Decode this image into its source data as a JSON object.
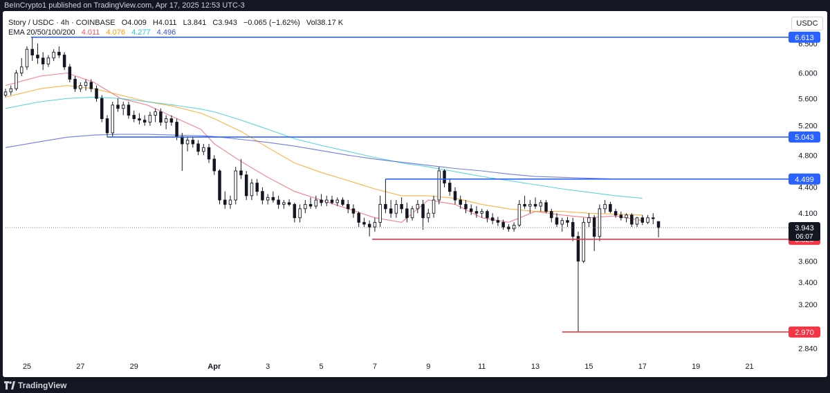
{
  "header": {
    "published": "BeInCrypto1 published on TradingView.com, Apr 17, 2025 12:53 UTC-3",
    "symbol": "Story / USDC · 4h · COINBASE",
    "open_label": "O",
    "open": "4.009",
    "high_label": "H",
    "high": "4.011",
    "low_label": "L",
    "low": "3.841",
    "close_label": "C",
    "close": "3.943",
    "change": "−0.065 (−1.62%)",
    "volume_label": "Vol",
    "volume": "38.17 K",
    "ema_label": "EMA 20/50/100/200",
    "ema20": "4.011",
    "ema50": "4.076",
    "ema100": "4.277",
    "ema200": "4.496"
  },
  "currency_button": "USDC",
  "footer": {
    "brand": "TradingView"
  },
  "colors": {
    "candle": "#131722",
    "ema20": "#f7525f",
    "ema50": "#ff9800",
    "ema100": "#26c6da",
    "ema200": "#3f51d8",
    "resistance": "#2962ff",
    "support": "#f23645",
    "price_tag": "#131722",
    "axis_text": "#131722",
    "background": "#ffffff"
  },
  "chart_data": {
    "type": "candlestick",
    "title": "Story / USDC · 4h · COINBASE",
    "y_axis": {
      "ticks": [
        "6.500",
        "6.000",
        "5.600",
        "5.200",
        "4.800",
        "4.400",
        "4.100",
        "3.600",
        "3.400",
        "3.200",
        "2.840"
      ],
      "range": [
        2.78,
        6.66
      ],
      "scale": "log"
    },
    "x_axis": {
      "ticks": [
        "25",
        "27",
        "29",
        "Apr",
        "3",
        "5",
        "7",
        "9",
        "11",
        "13",
        "15",
        "17",
        "19",
        "21"
      ],
      "tick_days": [
        0,
        2,
        4,
        7,
        9,
        11,
        13,
        15,
        17,
        19,
        21,
        23,
        25,
        27
      ],
      "range_days": [
        -0.8,
        28.2
      ]
    },
    "levels": [
      {
        "price": 6.613,
        "label": "6.613",
        "kind": "resistance",
        "from_day": 0.15
      },
      {
        "price": 5.043,
        "label": "5.043",
        "kind": "resistance",
        "from_day": 3.0
      },
      {
        "price": 4.499,
        "label": "4.499",
        "kind": "resistance",
        "from_day": 13.4
      },
      {
        "price": 3.82,
        "label": "3.820",
        "kind": "support",
        "from_day": 12.9
      },
      {
        "price": 2.97,
        "label": "2.970",
        "kind": "support",
        "from_day": 20.0
      }
    ],
    "last_price": {
      "value": 3.943,
      "label": "3.943",
      "countdown": "06:07"
    },
    "ema_series": [
      {
        "name": "EMA 20",
        "value": "4.011",
        "points": [
          [
            -0.8,
            5.8
          ],
          [
            0.5,
            5.95
          ],
          [
            1.5,
            6.0
          ],
          [
            2.5,
            5.85
          ],
          [
            3.5,
            5.6
          ],
          [
            4.5,
            5.5
          ],
          [
            5.5,
            5.32
          ],
          [
            6.5,
            5.15
          ],
          [
            7,
            4.95
          ],
          [
            8,
            4.72
          ],
          [
            9,
            4.52
          ],
          [
            10,
            4.35
          ],
          [
            11,
            4.25
          ],
          [
            12,
            4.15
          ],
          [
            13,
            4.05
          ],
          [
            14,
            4.0
          ],
          [
            15,
            4.25
          ],
          [
            16,
            4.2
          ],
          [
            17,
            4.05
          ],
          [
            18,
            4.0
          ],
          [
            19,
            4.12
          ],
          [
            20,
            4.08
          ],
          [
            21,
            4.05
          ],
          [
            22,
            4.07
          ],
          [
            23,
            4.02
          ]
        ]
      },
      {
        "name": "EMA 50",
        "value": "4.076",
        "points": [
          [
            -0.8,
            5.62
          ],
          [
            0.5,
            5.75
          ],
          [
            1.5,
            5.8
          ],
          [
            2.5,
            5.75
          ],
          [
            3.5,
            5.65
          ],
          [
            4.5,
            5.55
          ],
          [
            5.5,
            5.48
          ],
          [
            6.5,
            5.38
          ],
          [
            7,
            5.3
          ],
          [
            8,
            5.12
          ],
          [
            9,
            4.9
          ],
          [
            10,
            4.7
          ],
          [
            11,
            4.58
          ],
          [
            12,
            4.48
          ],
          [
            13,
            4.38
          ],
          [
            14,
            4.3
          ],
          [
            15,
            4.3
          ],
          [
            16,
            4.27
          ],
          [
            17,
            4.2
          ],
          [
            18,
            4.15
          ],
          [
            19,
            4.12
          ],
          [
            20,
            4.12
          ],
          [
            21,
            4.1
          ],
          [
            22,
            4.09
          ],
          [
            23,
            4.08
          ]
        ]
      },
      {
        "name": "EMA 100",
        "value": "4.277",
        "points": [
          [
            -0.8,
            5.45
          ],
          [
            0.5,
            5.55
          ],
          [
            1.5,
            5.6
          ],
          [
            2.5,
            5.62
          ],
          [
            3.5,
            5.6
          ],
          [
            4.5,
            5.55
          ],
          [
            5.5,
            5.5
          ],
          [
            6.5,
            5.44
          ],
          [
            7,
            5.4
          ],
          [
            8,
            5.28
          ],
          [
            9,
            5.15
          ],
          [
            10,
            5.02
          ],
          [
            11,
            4.93
          ],
          [
            12,
            4.85
          ],
          [
            13,
            4.77
          ],
          [
            14,
            4.7
          ],
          [
            15,
            4.65
          ],
          [
            16,
            4.59
          ],
          [
            17,
            4.53
          ],
          [
            18,
            4.48
          ],
          [
            19,
            4.43
          ],
          [
            20,
            4.38
          ],
          [
            21,
            4.34
          ],
          [
            22,
            4.3
          ],
          [
            23,
            4.27
          ]
        ]
      },
      {
        "name": "EMA 200",
        "value": "4.496",
        "points": [
          [
            -0.8,
            4.9
          ],
          [
            0.5,
            4.98
          ],
          [
            1.5,
            5.04
          ],
          [
            2.5,
            5.07
          ],
          [
            3.5,
            5.08
          ],
          [
            4.5,
            5.08
          ],
          [
            5.5,
            5.07
          ],
          [
            6.5,
            5.06
          ],
          [
            7,
            5.05
          ],
          [
            8,
            5.01
          ],
          [
            9,
            4.97
          ],
          [
            10,
            4.92
          ],
          [
            11,
            4.86
          ],
          [
            12,
            4.8
          ],
          [
            13,
            4.75
          ],
          [
            14,
            4.71
          ],
          [
            15,
            4.67
          ],
          [
            16,
            4.63
          ],
          [
            17,
            4.6
          ],
          [
            18,
            4.56
          ],
          [
            19,
            4.53
          ],
          [
            20,
            4.52
          ],
          [
            21,
            4.51
          ],
          [
            22,
            4.5
          ],
          [
            23,
            4.5
          ]
        ]
      }
    ],
    "candles": [
      [
        -0.8,
        5.65,
        5.75,
        5.62,
        5.7
      ],
      [
        -0.6,
        5.7,
        5.8,
        5.65,
        5.75
      ],
      [
        -0.4,
        5.75,
        6.05,
        5.72,
        6.0
      ],
      [
        -0.2,
        6.0,
        6.25,
        5.95,
        6.1
      ],
      [
        0,
        6.1,
        6.45,
        6.05,
        6.4
      ],
      [
        0.2,
        6.4,
        6.613,
        6.2,
        6.3
      ],
      [
        0.4,
        6.3,
        6.5,
        6.15,
        6.25
      ],
      [
        0.6,
        6.25,
        6.35,
        6.05,
        6.15
      ],
      [
        0.8,
        6.15,
        6.3,
        6.1,
        6.25
      ],
      [
        1,
        6.25,
        6.4,
        6.2,
        6.35
      ],
      [
        1.2,
        6.35,
        6.45,
        6.25,
        6.3
      ],
      [
        1.4,
        6.3,
        6.35,
        6.05,
        6.1
      ],
      [
        1.6,
        6.1,
        6.15,
        5.85,
        5.9
      ],
      [
        1.8,
        5.9,
        5.95,
        5.7,
        5.75
      ],
      [
        2,
        5.75,
        5.85,
        5.7,
        5.8
      ],
      [
        2.2,
        5.8,
        5.9,
        5.72,
        5.85
      ],
      [
        2.4,
        5.85,
        5.9,
        5.7,
        5.75
      ],
      [
        2.6,
        5.75,
        5.8,
        5.55,
        5.6
      ],
      [
        2.8,
        5.6,
        5.65,
        5.25,
        5.3
      ],
      [
        3.0,
        5.3,
        5.35,
        5.04,
        5.1
      ],
      [
        3.2,
        5.1,
        5.55,
        5.05,
        5.5
      ],
      [
        3.4,
        5.5,
        5.6,
        5.4,
        5.45
      ],
      [
        3.6,
        5.45,
        5.55,
        5.35,
        5.5
      ],
      [
        3.8,
        5.5,
        5.55,
        5.3,
        5.35
      ],
      [
        4.0,
        5.35,
        5.42,
        5.25,
        5.3
      ],
      [
        4.2,
        5.3,
        5.38,
        5.22,
        5.28
      ],
      [
        4.4,
        5.28,
        5.35,
        5.2,
        5.25
      ],
      [
        4.6,
        5.25,
        5.4,
        5.2,
        5.35
      ],
      [
        4.8,
        5.35,
        5.45,
        5.25,
        5.4
      ],
      [
        5.0,
        5.4,
        5.45,
        5.2,
        5.25
      ],
      [
        5.2,
        5.25,
        5.35,
        5.15,
        5.3
      ],
      [
        5.4,
        5.3,
        5.35,
        5.2,
        5.25
      ],
      [
        5.6,
        5.25,
        5.3,
        5.0,
        5.05
      ],
      [
        5.8,
        5.05,
        5.1,
        4.6,
        4.95
      ],
      [
        6.0,
        4.95,
        5.05,
        4.85,
        5.0
      ],
      [
        6.2,
        5.0,
        5.05,
        4.9,
        4.95
      ],
      [
        6.4,
        4.95,
        5.0,
        4.8,
        4.85
      ],
      [
        6.6,
        4.85,
        4.95,
        4.8,
        4.9
      ],
      [
        6.8,
        4.9,
        4.95,
        4.7,
        4.75
      ],
      [
        7.0,
        4.75,
        4.8,
        4.55,
        4.6
      ],
      [
        7.2,
        4.6,
        4.62,
        4.2,
        4.25
      ],
      [
        7.4,
        4.25,
        4.35,
        4.15,
        4.2
      ],
      [
        7.6,
        4.2,
        4.3,
        4.15,
        4.25
      ],
      [
        7.8,
        4.25,
        4.65,
        4.2,
        4.6
      ],
      [
        8.0,
        4.6,
        4.75,
        4.5,
        4.55
      ],
      [
        8.2,
        4.55,
        4.6,
        4.25,
        4.3
      ],
      [
        8.4,
        4.3,
        4.5,
        4.25,
        4.45
      ],
      [
        8.6,
        4.45,
        4.5,
        4.3,
        4.35
      ],
      [
        8.8,
        4.35,
        4.4,
        4.2,
        4.25
      ],
      [
        9.0,
        4.25,
        4.32,
        4.2,
        4.28
      ],
      [
        9.2,
        4.28,
        4.35,
        4.22,
        4.25
      ],
      [
        9.4,
        4.25,
        4.3,
        4.15,
        4.2
      ],
      [
        9.6,
        4.2,
        4.25,
        4.15,
        4.22
      ],
      [
        9.8,
        4.22,
        4.26,
        4.18,
        4.2
      ],
      [
        10.0,
        4.2,
        4.22,
        4.0,
        4.05
      ],
      [
        10.2,
        4.05,
        4.2,
        4.0,
        4.15
      ],
      [
        10.4,
        4.15,
        4.25,
        4.1,
        4.2
      ],
      [
        10.6,
        4.2,
        4.28,
        4.15,
        4.18
      ],
      [
        10.8,
        4.18,
        4.3,
        4.15,
        4.25
      ],
      [
        11.0,
        4.25,
        4.32,
        4.18,
        4.22
      ],
      [
        11.2,
        4.22,
        4.3,
        4.18,
        4.25
      ],
      [
        11.4,
        4.25,
        4.3,
        4.2,
        4.22
      ],
      [
        11.6,
        4.22,
        4.28,
        4.18,
        4.25
      ],
      [
        11.8,
        4.25,
        4.28,
        4.18,
        4.2
      ],
      [
        12.0,
        4.2,
        4.25,
        4.1,
        4.15
      ],
      [
        12.2,
        4.15,
        4.2,
        4.05,
        4.1
      ],
      [
        12.4,
        4.1,
        4.12,
        3.95,
        4.0
      ],
      [
        12.6,
        4.0,
        4.05,
        3.95,
        3.98
      ],
      [
        12.8,
        3.98,
        4.02,
        3.85,
        3.95
      ],
      [
        13.0,
        3.95,
        4.05,
        3.9,
        4.0
      ],
      [
        13.2,
        4.0,
        4.3,
        3.95,
        4.2
      ],
      [
        13.4,
        4.2,
        4.499,
        4.1,
        4.15
      ],
      [
        13.6,
        4.15,
        4.25,
        4.05,
        4.1
      ],
      [
        13.8,
        4.1,
        4.25,
        4.05,
        4.2
      ],
      [
        14.0,
        4.2,
        4.28,
        4.1,
        4.15
      ],
      [
        14.2,
        4.15,
        4.22,
        4.0,
        4.05
      ],
      [
        14.4,
        4.05,
        4.18,
        4.02,
        4.15
      ],
      [
        14.6,
        4.15,
        4.25,
        4.1,
        4.2
      ],
      [
        14.8,
        4.2,
        4.25,
        3.92,
        4.05
      ],
      [
        15.0,
        4.05,
        4.15,
        4.0,
        4.1
      ],
      [
        15.2,
        4.1,
        4.3,
        4.05,
        4.25
      ],
      [
        15.4,
        4.25,
        4.65,
        4.2,
        4.6
      ],
      [
        15.6,
        4.6,
        4.62,
        4.4,
        4.45
      ],
      [
        15.8,
        4.45,
        4.5,
        4.3,
        4.35
      ],
      [
        16.0,
        4.35,
        4.4,
        4.2,
        4.25
      ],
      [
        16.2,
        4.25,
        4.3,
        4.15,
        4.2
      ],
      [
        16.4,
        4.2,
        4.25,
        4.1,
        4.15
      ],
      [
        16.6,
        4.15,
        4.2,
        4.08,
        4.12
      ],
      [
        16.8,
        4.12,
        4.18,
        4.05,
        4.1
      ],
      [
        17.0,
        4.1,
        4.15,
        4.05,
        4.12
      ],
      [
        17.2,
        4.12,
        4.14,
        4.0,
        4.05
      ],
      [
        17.4,
        4.05,
        4.1,
        3.98,
        4.02
      ],
      [
        17.6,
        4.02,
        4.06,
        3.96,
        4.0
      ],
      [
        17.8,
        4.0,
        4.03,
        3.92,
        3.95
      ],
      [
        18.0,
        3.95,
        3.98,
        3.9,
        3.93
      ],
      [
        18.2,
        3.93,
        4.0,
        3.9,
        3.97
      ],
      [
        18.4,
        3.97,
        4.25,
        3.95,
        4.2
      ],
      [
        18.6,
        4.2,
        4.3,
        4.15,
        4.18
      ],
      [
        18.8,
        4.18,
        4.25,
        4.1,
        4.2
      ],
      [
        19.0,
        4.2,
        4.28,
        4.15,
        4.18
      ],
      [
        19.2,
        4.18,
        4.25,
        4.12,
        4.22
      ],
      [
        19.4,
        4.22,
        4.25,
        4.1,
        4.12
      ],
      [
        19.6,
        4.12,
        4.15,
        4.0,
        4.05
      ],
      [
        19.8,
        4.05,
        4.1,
        3.95,
        3.98
      ],
      [
        20.0,
        3.98,
        4.05,
        3.9,
        4.02
      ],
      [
        20.2,
        4.02,
        4.06,
        3.95,
        4.0
      ],
      [
        20.4,
        4.0,
        4.05,
        3.8,
        3.85
      ],
      [
        20.6,
        3.85,
        3.9,
        2.97,
        3.6
      ],
      [
        20.8,
        3.6,
        4.05,
        3.58,
        4.0
      ],
      [
        21.0,
        4.0,
        4.1,
        3.95,
        4.05
      ],
      [
        21.2,
        4.05,
        4.08,
        3.7,
        3.85
      ],
      [
        21.4,
        3.85,
        4.2,
        3.8,
        4.15
      ],
      [
        21.6,
        4.15,
        4.25,
        4.1,
        4.2
      ],
      [
        21.8,
        4.2,
        4.23,
        4.1,
        4.12
      ],
      [
        22.0,
        4.12,
        4.15,
        4.05,
        4.08
      ],
      [
        22.2,
        4.08,
        4.12,
        4.02,
        4.05
      ],
      [
        22.4,
        4.05,
        4.1,
        4.0,
        4.08
      ],
      [
        22.6,
        4.08,
        4.1,
        3.95,
        3.98
      ],
      [
        22.8,
        3.98,
        4.06,
        3.95,
        4.05
      ],
      [
        23.0,
        4.05,
        4.08,
        3.97,
        4.0
      ],
      [
        23.2,
        4.0,
        4.08,
        3.98,
        4.05
      ],
      [
        23.4,
        4.05,
        4.1,
        3.98,
        4.04
      ],
      [
        23.6,
        4.009,
        4.011,
        3.841,
        3.943
      ]
    ]
  }
}
